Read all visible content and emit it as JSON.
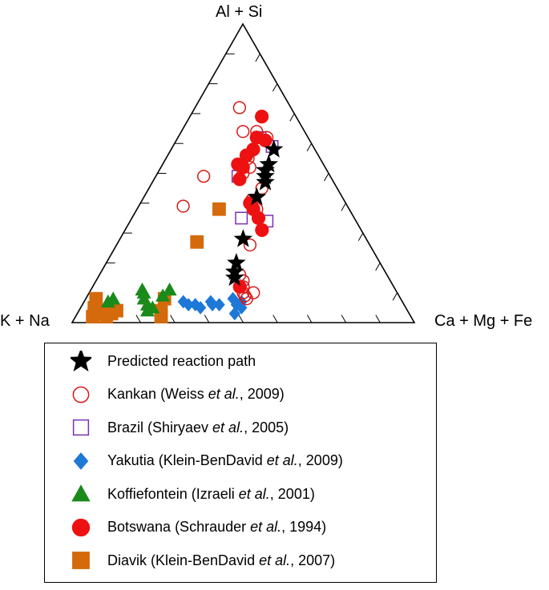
{
  "chart_data": {
    "type": "ternary-scatter",
    "axes": {
      "top": "Al + Si",
      "left": "K + Na",
      "right": "Ca + Mg + Fe"
    },
    "note": "points are [top_fraction, right_fraction]; left = 1 - top - right",
    "series": [
      {
        "name": "Predicted reaction path",
        "marker": "star",
        "color": "#000000",
        "filled": true,
        "points": [
          [
            0.58,
            0.3
          ],
          [
            0.53,
            0.31
          ],
          [
            0.51,
            0.31
          ],
          [
            0.49,
            0.32
          ],
          [
            0.47,
            0.33
          ],
          [
            0.42,
            0.33
          ],
          [
            0.28,
            0.36
          ],
          [
            0.2,
            0.38
          ],
          [
            0.17,
            0.39
          ],
          [
            0.15,
            0.4
          ]
        ]
      },
      {
        "name": "Kankan",
        "source": "(Weiss ",
        "etal": "et al.",
        "year": ", 2009)",
        "marker": "circle",
        "color": "#d81818",
        "filled": false,
        "points": [
          [
            0.72,
            0.13
          ],
          [
            0.64,
            0.18
          ],
          [
            0.64,
            0.22
          ],
          [
            0.62,
            0.26
          ],
          [
            0.55,
            0.24
          ],
          [
            0.52,
            0.26
          ],
          [
            0.49,
            0.14
          ],
          [
            0.5,
            0.25
          ],
          [
            0.45,
            0.33
          ],
          [
            0.39,
            0.13
          ],
          [
            0.41,
            0.32
          ],
          [
            0.38,
            0.35
          ],
          [
            0.26,
            0.39
          ],
          [
            0.16,
            0.41
          ],
          [
            0.14,
            0.43
          ],
          [
            0.12,
            0.44
          ],
          [
            0.1,
            0.45
          ],
          [
            0.09,
            0.46
          ],
          [
            0.08,
            0.47
          ],
          [
            0.1,
            0.48
          ]
        ]
      },
      {
        "name": "Brazil",
        "source": "(Shiryaev ",
        "etal": "et al.",
        "year": ", 2005)",
        "marker": "square",
        "color": "#7b2fb5",
        "filled": false,
        "points": [
          [
            0.62,
            0.24
          ],
          [
            0.59,
            0.29
          ],
          [
            0.49,
            0.24
          ],
          [
            0.35,
            0.32
          ],
          [
            0.34,
            0.4
          ]
        ]
      },
      {
        "name": "Yakutia",
        "source": "(Klein-BenDavid ",
        "etal": "et al.",
        "year": ", 2009)",
        "marker": "diamond",
        "color": "#1e78d7",
        "filled": true,
        "points": [
          [
            0.07,
            0.29
          ],
          [
            0.06,
            0.31
          ],
          [
            0.06,
            0.33
          ],
          [
            0.05,
            0.35
          ],
          [
            0.07,
            0.37
          ],
          [
            0.06,
            0.38
          ],
          [
            0.06,
            0.4
          ],
          [
            0.08,
            0.43
          ],
          [
            0.06,
            0.45
          ],
          [
            0.05,
            0.47
          ],
          [
            0.07,
            0.46
          ],
          [
            0.03,
            0.46
          ]
        ]
      },
      {
        "name": "Koffiefontein",
        "source": "(Izraeli ",
        "etal": "et al.",
        "year": ", 2001)",
        "marker": "triangle",
        "color": "#1a8a1a",
        "filled": true,
        "points": [
          [
            0.07,
            0.07
          ],
          [
            0.08,
            0.08
          ],
          [
            0.11,
            0.15
          ],
          [
            0.1,
            0.16
          ],
          [
            0.08,
            0.17
          ],
          [
            0.06,
            0.19
          ],
          [
            0.04,
            0.2
          ],
          [
            0.05,
            0.21
          ],
          [
            0.09,
            0.22
          ],
          [
            0.11,
            0.23
          ]
        ]
      },
      {
        "name": "Botswana",
        "source": "(Schrauder ",
        "etal": "et al.",
        "year": ", 1994)",
        "marker": "circle",
        "color": "#ee1111",
        "filled": true,
        "points": [
          [
            0.69,
            0.21
          ],
          [
            0.62,
            0.23
          ],
          [
            0.61,
            0.26
          ],
          [
            0.58,
            0.24
          ],
          [
            0.56,
            0.23
          ],
          [
            0.53,
            0.22
          ],
          [
            0.52,
            0.24
          ],
          [
            0.48,
            0.25
          ],
          [
            0.4,
            0.32
          ],
          [
            0.38,
            0.34
          ],
          [
            0.35,
            0.37
          ],
          [
            0.31,
            0.4
          ],
          [
            0.12,
            0.43
          ]
        ]
      },
      {
        "name": "Diavik",
        "source": "(Klein-BenDavid ",
        "etal": "et al.",
        "year": ", 2007)",
        "marker": "square",
        "color": "#d46a0c",
        "filled": true,
        "points": [
          [
            0.08,
            0.03
          ],
          [
            0.05,
            0.04
          ],
          [
            0.03,
            0.05
          ],
          [
            0.04,
            0.07
          ],
          [
            0.02,
            0.05
          ],
          [
            0.02,
            0.09
          ],
          [
            0.03,
            0.1
          ],
          [
            0.04,
            0.11
          ],
          [
            0.08,
            0.23
          ],
          [
            0.04,
            0.24
          ],
          [
            0.02,
            0.25
          ],
          [
            0.38,
            0.24
          ],
          [
            0.27,
            0.23
          ]
        ]
      }
    ]
  }
}
